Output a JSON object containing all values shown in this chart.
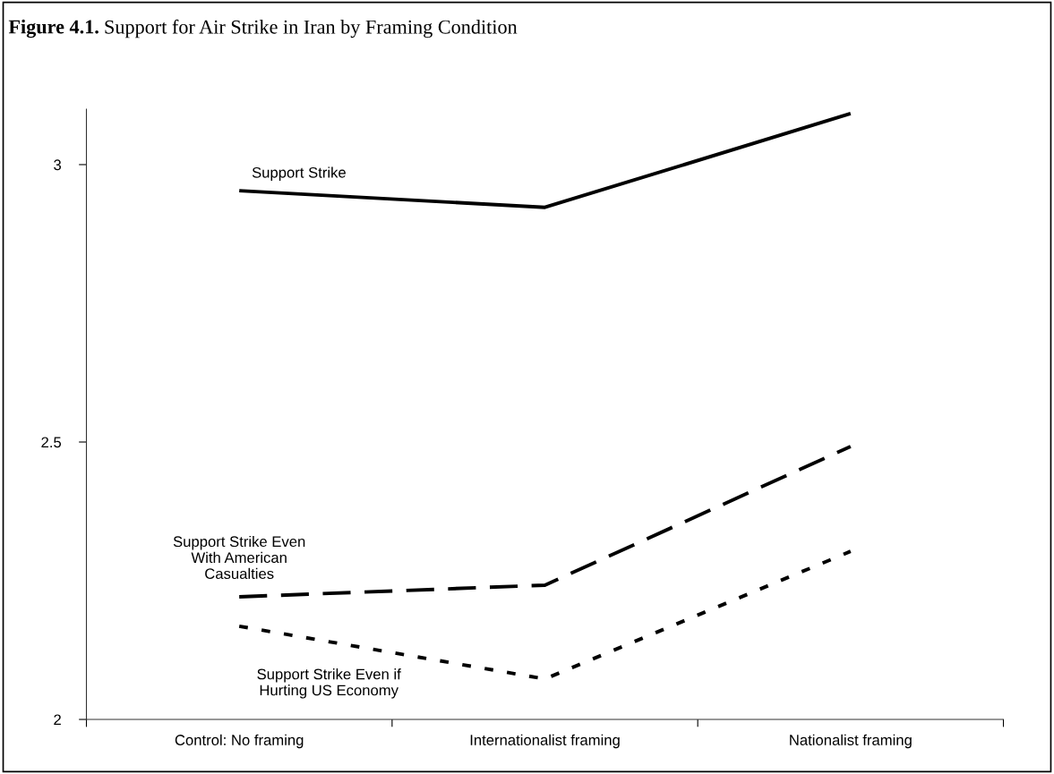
{
  "chart_data": {
    "type": "line",
    "title": "Figure 4.1.",
    "subtitle": "Support for Air Strike in Iran by Framing Condition",
    "categories": [
      "Control: No framing",
      "Internationalist framing",
      "Nationalist framing"
    ],
    "series": [
      {
        "name": "Support Strike",
        "color": "#000000",
        "line_style": "solid",
        "values": [
          2.953,
          2.923,
          3.092
        ]
      },
      {
        "name": "Support Strike Even\nWith American\nCasualties",
        "color": "#000000",
        "line_style": "dashed",
        "values": [
          2.221,
          2.242,
          2.492
        ]
      },
      {
        "name": "Support Strike Even if\nHurting US Economy",
        "color": "#000000",
        "line_style": "dotted",
        "values": [
          2.168,
          2.073,
          2.303
        ]
      }
    ],
    "ylim": [
      2,
      3.1
    ],
    "yticks": [
      2,
      2.5,
      3
    ],
    "grid": false,
    "legend": false,
    "marker": "none"
  }
}
